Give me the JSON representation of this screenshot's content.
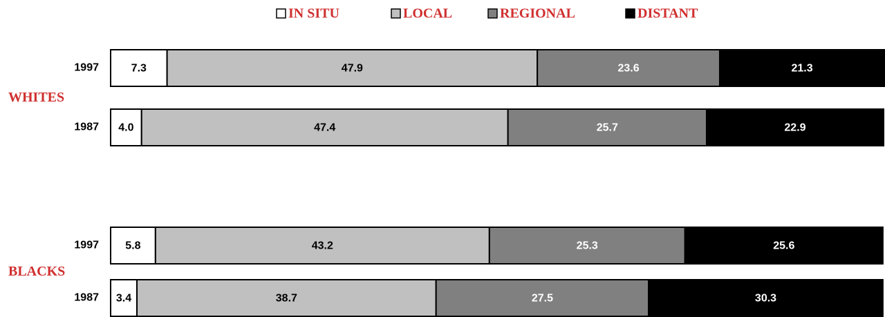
{
  "chart_data": {
    "type": "stacked-bar-horizontal",
    "categories": [
      "1997",
      "1987",
      "1997",
      "1987"
    ],
    "groups": [
      "WHITES",
      "BLACKS"
    ],
    "xlim": [
      0,
      100
    ],
    "series": [
      {
        "name": "IN SITU",
        "color": "#ffffff",
        "values": [
          7.3,
          4.0,
          5.8,
          3.4
        ],
        "value_labels": [
          "7.3",
          "4.0",
          "5.8",
          "3.4"
        ]
      },
      {
        "name": "LOCAL",
        "color": "#c0c0c0",
        "values": [
          47.9,
          47.4,
          43.2,
          38.7
        ],
        "value_labels": [
          "47.9",
          "47.4",
          "43.2",
          "38.7"
        ]
      },
      {
        "name": "REGIONAL",
        "color": "#808080",
        "values": [
          23.6,
          25.7,
          25.3,
          27.5
        ],
        "value_labels": [
          "23.6",
          "25.7",
          "25.3",
          "27.5"
        ]
      },
      {
        "name": "DISTANT",
        "color": "#000000",
        "values": [
          21.3,
          22.9,
          25.6,
          30.3
        ],
        "value_labels": [
          "21.3",
          "22.9",
          "25.6",
          "30.3"
        ]
      }
    ]
  }
}
